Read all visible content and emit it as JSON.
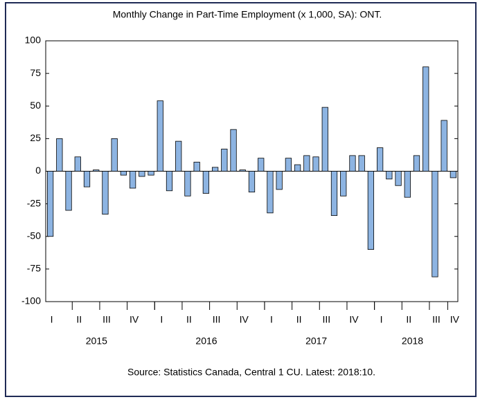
{
  "chart_data": {
    "type": "bar",
    "title": "Monthly Change in Part-Time Employment (x 1,000, SA): ONT.",
    "source": "Source: Statistics Canada, Central 1 CU. Latest: 2018:10.",
    "categories": [
      "I",
      null,
      null,
      "II",
      null,
      null,
      "III",
      null,
      null,
      "IV",
      null,
      null,
      "I",
      null,
      null,
      "II",
      null,
      null,
      "III",
      null,
      null,
      "IV",
      null,
      null,
      "I",
      null,
      null,
      "II",
      null,
      null,
      "III",
      null,
      null,
      "IV",
      null,
      null,
      "I",
      null,
      null,
      "II",
      null,
      null,
      "III",
      null,
      "IV"
    ],
    "years": [
      "2015",
      "2016",
      "2017",
      "2018"
    ],
    "values": [
      -50,
      25,
      -30,
      11,
      -12,
      1,
      -33,
      25,
      -3,
      -13,
      -4,
      -3,
      54,
      -15,
      23,
      -19,
      7,
      -17,
      3,
      17,
      32,
      1,
      -16,
      10,
      -32,
      -14,
      10,
      5,
      12,
      11,
      49,
      -34,
      -19,
      12,
      12,
      -60,
      18,
      -6,
      -11,
      -20,
      12,
      80,
      -81,
      39,
      -5
    ],
    "color": "#8db4e2",
    "ylim": [
      -100,
      100
    ],
    "yticks": [
      -100,
      -75,
      -50,
      -25,
      0,
      25,
      50,
      75,
      100
    ]
  }
}
